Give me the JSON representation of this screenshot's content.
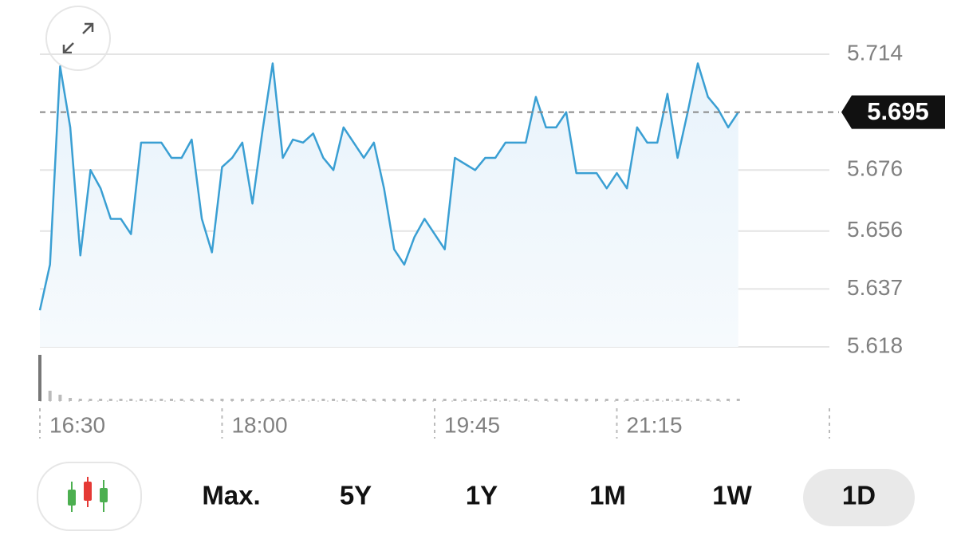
{
  "chart_data": {
    "type": "line",
    "x": [
      "16:30",
      "16:35",
      "16:40",
      "16:45",
      "16:50",
      "16:55",
      "17:00",
      "17:05",
      "17:10",
      "17:15",
      "17:20",
      "17:25",
      "17:30",
      "17:35",
      "17:40",
      "17:45",
      "17:50",
      "17:55",
      "18:00",
      "18:05",
      "18:10",
      "18:15",
      "18:20",
      "18:25",
      "18:30",
      "18:35",
      "18:40",
      "18:45",
      "18:50",
      "18:55",
      "19:00",
      "19:05",
      "19:10",
      "19:15",
      "19:20",
      "19:25",
      "19:30",
      "19:35",
      "19:40",
      "19:45",
      "19:50",
      "19:55",
      "20:00",
      "20:05",
      "20:10",
      "20:15",
      "20:20",
      "20:25",
      "20:30",
      "20:35",
      "20:40",
      "20:45",
      "20:50",
      "20:55",
      "21:00",
      "21:05",
      "21:10",
      "21:15",
      "21:20",
      "21:25",
      "21:30",
      "21:35",
      "21:40",
      "21:45",
      "21:50",
      "21:55",
      "22:00",
      "22:05",
      "22:10",
      "22:15"
    ],
    "values": [
      5.63,
      5.645,
      5.71,
      5.69,
      5.648,
      5.676,
      5.67,
      5.66,
      5.66,
      5.655,
      5.685,
      5.685,
      5.685,
      5.68,
      5.68,
      5.686,
      5.66,
      5.649,
      5.677,
      5.68,
      5.685,
      5.665,
      5.689,
      5.711,
      5.68,
      5.686,
      5.685,
      5.688,
      5.68,
      5.676,
      5.69,
      5.685,
      5.68,
      5.685,
      5.67,
      5.65,
      5.645,
      5.654,
      5.66,
      5.655,
      5.65,
      5.68,
      5.678,
      5.676,
      5.68,
      5.68,
      5.685,
      5.685,
      5.685,
      5.7,
      5.69,
      5.69,
      5.695,
      5.675,
      5.675,
      5.675,
      5.67,
      5.675,
      5.67,
      5.69,
      5.685,
      5.685,
      5.701,
      5.68,
      5.695,
      5.711,
      5.7,
      5.696,
      5.69,
      5.695
    ],
    "volume": [
      58,
      13,
      8,
      4,
      3,
      3,
      3,
      3,
      3,
      3,
      3,
      3,
      3,
      3,
      3,
      3,
      3,
      3,
      3,
      3,
      3,
      3,
      3,
      3,
      3,
      3,
      3,
      3,
      3,
      3,
      3,
      3,
      3,
      3,
      3,
      3,
      3,
      3,
      3,
      3,
      3,
      3,
      3,
      3,
      3,
      3,
      3,
      3,
      3,
      3,
      3,
      3,
      3,
      3,
      3,
      3,
      3,
      3,
      3,
      3,
      3,
      3,
      3,
      3,
      3,
      3,
      3,
      3,
      3,
      3
    ],
    "color": "#3a9fd3",
    "ylim": [
      5.618,
      5.714
    ],
    "yticks": [
      5.618,
      5.637,
      5.656,
      5.676,
      5.714
    ],
    "xlim": [
      "16:30",
      "23:00"
    ],
    "xticks": [
      "16:30",
      "18:00",
      "19:45",
      "21:15"
    ],
    "last_price": 5.695,
    "grid": true
  },
  "controls": {
    "ranges": [
      "Max.",
      "5Y",
      "1Y",
      "1M",
      "1W",
      "1D"
    ],
    "selected_range": "1D"
  }
}
